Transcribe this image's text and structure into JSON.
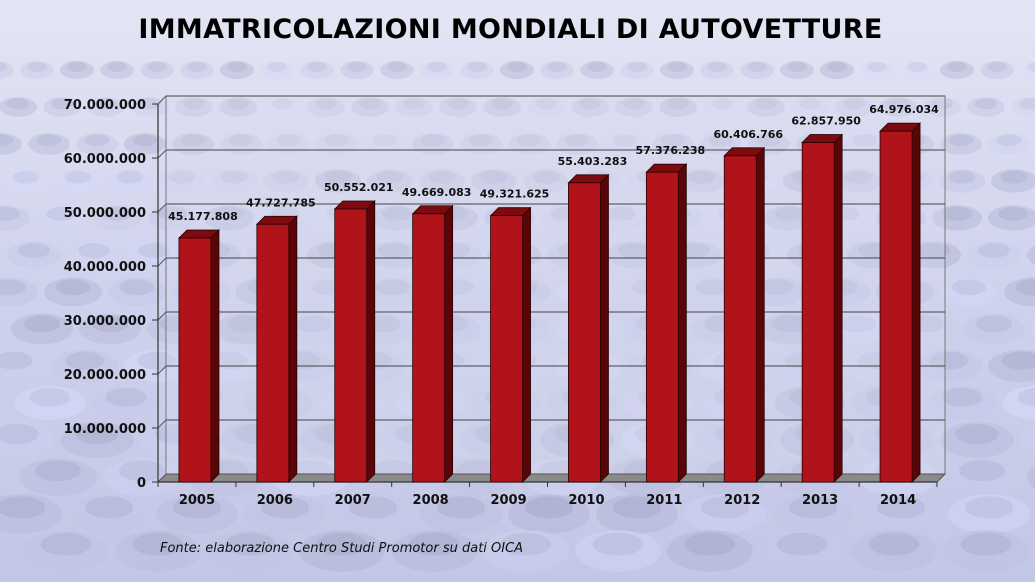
{
  "title": "IMMATRICOLAZIONI MONDIALI DI AUTOVETTURE",
  "source": "Fonte: elaborazione Centro Studi Promotor su dati OICA",
  "colors": {
    "bar_front": "#b0141a",
    "bar_side": "#5a0508",
    "bar_top": "#7c0b10",
    "background": "#d4d6ee"
  },
  "chart_data": {
    "type": "bar",
    "categories": [
      "2005",
      "2006",
      "2007",
      "2008",
      "2009",
      "2010",
      "2011",
      "2012",
      "2013",
      "2014"
    ],
    "values": [
      45177808,
      47727785,
      50552021,
      49669083,
      49321625,
      55403283,
      57376238,
      60406766,
      62857950,
      64976034
    ],
    "value_labels": [
      "45.177.808",
      "47.727.785",
      "50.552.021",
      "49.669.083",
      "49.321.625",
      "55.403.283",
      "57.376.238",
      "60.406.766",
      "62.857.950",
      "64.976.034"
    ],
    "yticks": [
      "0",
      "10.000.000",
      "20.000.000",
      "30.000.000",
      "40.000.000",
      "50.000.000",
      "60.000.000",
      "70.000.000"
    ],
    "ylim": [
      0,
      70000000
    ],
    "grid": true,
    "title": "IMMATRICOLAZIONI MONDIALI DI AUTOVETTURE",
    "xlabel": "",
    "ylabel": ""
  }
}
